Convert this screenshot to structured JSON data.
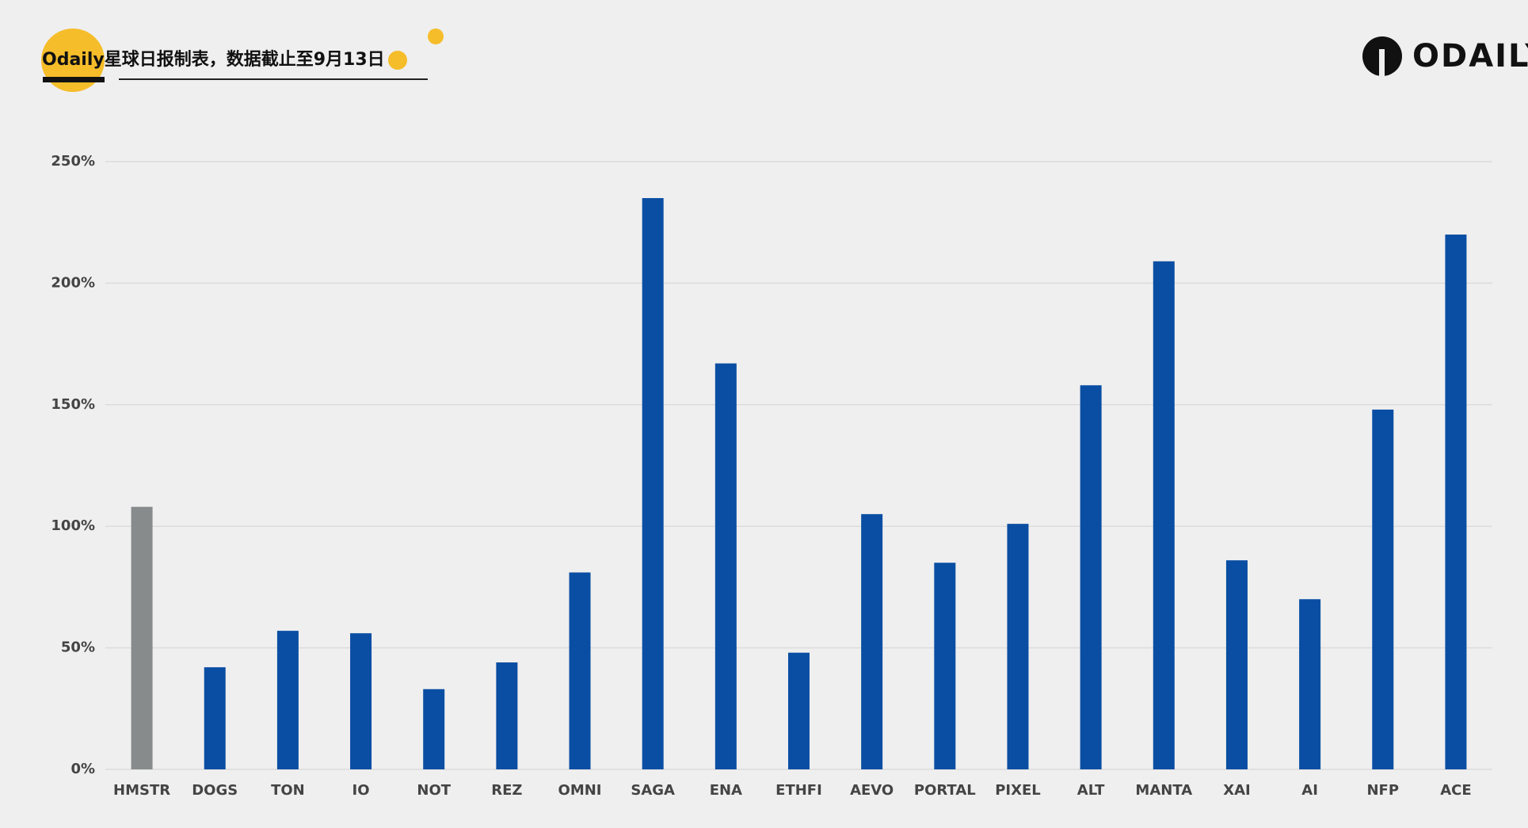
{
  "brand": "ODAILY",
  "chart_data": {
    "type": "bar",
    "title": "Odaily星球日报制表，数据截止至9月13日",
    "categories": [
      "HMSTR",
      "DOGS",
      "TON",
      "IO",
      "NOT",
      "REZ",
      "OMNI",
      "SAGA",
      "ENA",
      "ETHFI",
      "AEVO",
      "PORTAL",
      "PIXEL",
      "ALT",
      "MANTA",
      "XAI",
      "AI",
      "NFP",
      "ACE"
    ],
    "values": [
      108,
      42,
      57,
      56,
      33,
      44,
      81,
      235,
      167,
      48,
      105,
      85,
      101,
      158,
      209,
      86,
      70,
      148,
      220
    ],
    "colors": [
      "#878b8c",
      "#0a4ea3",
      "#0a4ea3",
      "#0a4ea3",
      "#0a4ea3",
      "#0a4ea3",
      "#0a4ea3",
      "#0a4ea3",
      "#0a4ea3",
      "#0a4ea3",
      "#0a4ea3",
      "#0a4ea3",
      "#0a4ea3",
      "#0a4ea3",
      "#0a4ea3",
      "#0a4ea3",
      "#0a4ea3",
      "#0a4ea3",
      "#0a4ea3"
    ],
    "ylim": [
      0,
      250
    ],
    "yticks": [
      {
        "value": 0,
        "label": "0%"
      },
      {
        "value": 50,
        "label": "50%"
      },
      {
        "value": 100,
        "label": "100%"
      },
      {
        "value": 150,
        "label": "150%"
      },
      {
        "value": 200,
        "label": "200%"
      },
      {
        "value": 250,
        "label": "250%"
      }
    ],
    "grid": true
  }
}
